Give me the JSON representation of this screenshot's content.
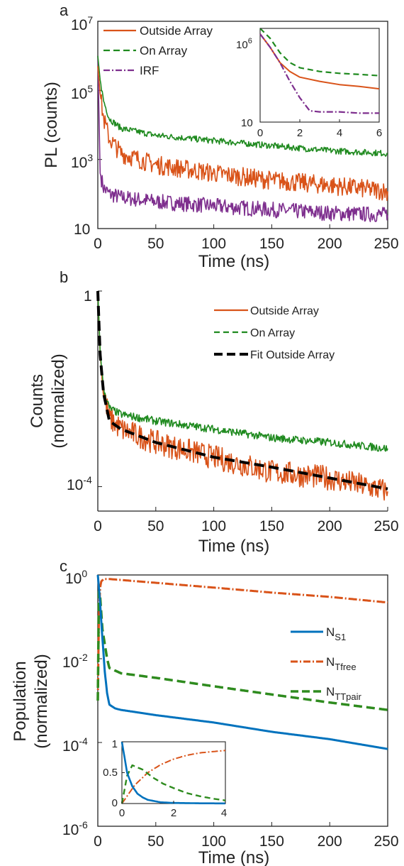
{
  "colors": {
    "outside": "#d95319",
    "on": "#1f8a1f",
    "irf": "#7e2f8e",
    "fit": "#000000",
    "s1": "#0072bd",
    "tfree": "#d95319",
    "ttpair": "#2e8b1e",
    "axis": "#222222"
  },
  "chart_data": [
    {
      "panel": "a",
      "type": "line",
      "title": "",
      "xlabel": "Time (ns)",
      "ylabel": "PL (counts)",
      "xlim": [
        0,
        250
      ],
      "ylim_log10": [
        1,
        7
      ],
      "log_y": true,
      "x_ticks": [
        "0",
        "50",
        "100",
        "150",
        "200",
        "250"
      ],
      "y_ticks": [
        {
          "mant": "10",
          "exp": "7"
        },
        {
          "mant": "10",
          "exp": "5"
        },
        {
          "mant": "10",
          "exp": "3"
        },
        {
          "mant": "10",
          "exp": ""
        }
      ],
      "legend_position": "top-left",
      "series": [
        {
          "name": "Outside Array",
          "style": "solid",
          "x": [
            0,
            2,
            5,
            10,
            20,
            50,
            100,
            150,
            200,
            250
          ],
          "y": [
            500000,
            80000,
            15000,
            4000,
            1500,
            700,
            400,
            250,
            180,
            120
          ]
        },
        {
          "name": "On Array",
          "style": "dashed",
          "x": [
            0,
            2,
            5,
            10,
            20,
            50,
            100,
            150,
            200,
            250
          ],
          "y": [
            1000000,
            200000,
            50000,
            15000,
            8000,
            5000,
            3500,
            2500,
            1800,
            1500
          ]
        },
        {
          "name": "IRF",
          "style": "dashdot",
          "x": [
            0,
            2,
            5,
            10,
            20,
            50,
            100,
            150,
            200,
            250
          ],
          "y": [
            1000000,
            400,
            150,
            100,
            80,
            60,
            45,
            35,
            28,
            25
          ]
        }
      ],
      "inset": {
        "xlim": [
          0,
          6
        ],
        "ylim_log10": [
          1,
          6
        ],
        "x_ticks": [
          "0",
          "2",
          "4",
          "6"
        ],
        "y_ticks": [
          {
            "mant": "10",
            "exp": "6"
          },
          {
            "mant": "10",
            "exp": ""
          }
        ],
        "series": [
          {
            "name": "Outside Array",
            "x": [
              0,
              0.5,
              1,
              1.5,
              2,
              3,
              4,
              5,
              6
            ],
            "y": [
              500000,
              100000,
              15000,
              5000,
              2500,
              1500,
              1000,
              800,
              600
            ]
          },
          {
            "name": "On Array",
            "x": [
              0,
              0.5,
              1,
              1.5,
              2,
              3,
              4,
              5,
              6
            ],
            "y": [
              1500000,
              300000,
              50000,
              15000,
              8000,
              5000,
              4000,
              3500,
              3000
            ]
          },
          {
            "name": "IRF",
            "x": [
              0,
              0.5,
              1,
              1.5,
              2,
              2.5,
              3,
              4,
              5,
              6
            ],
            "y": [
              500000,
              100000,
              15000,
              1500,
              200,
              40,
              35,
              35,
              30,
              30
            ]
          }
        ]
      }
    },
    {
      "panel": "b",
      "type": "line",
      "title": "",
      "xlabel": "Time (ns)",
      "ylabel": "Counts\n(normalized)",
      "ylabel_lines": [
        "Counts",
        "(normalized)"
      ],
      "xlim": [
        0,
        250
      ],
      "ylim_log10": [
        -4.5,
        0
      ],
      "log_y": true,
      "x_ticks": [
        "0",
        "50",
        "100",
        "150",
        "200",
        "250"
      ],
      "y_ticks": [
        {
          "mant": "1",
          "exp": ""
        },
        {
          "mant": "10",
          "exp": "-4"
        }
      ],
      "legend_position": "top-right",
      "series": [
        {
          "name": "Outside Array",
          "style": "solid",
          "x": [
            0,
            2,
            5,
            10,
            20,
            50,
            100,
            150,
            200,
            250
          ],
          "y": [
            1,
            0.05,
            0.008,
            0.0025,
            0.0015,
            0.0008,
            0.0004,
            0.0002,
            0.00015,
            8e-05
          ]
        },
        {
          "name": "On Array",
          "style": "dashed",
          "x": [
            0,
            2,
            5,
            10,
            20,
            50,
            100,
            150,
            200,
            250
          ],
          "y": [
            1,
            0.06,
            0.01,
            0.004,
            0.003,
            0.0022,
            0.0015,
            0.001,
            0.0008,
            0.0006
          ]
        },
        {
          "name": "Fit Outside Array",
          "style": "dashed-thick",
          "x": [
            0,
            2,
            5,
            10,
            20,
            50,
            100,
            150,
            200,
            250
          ],
          "y": [
            1,
            0.05,
            0.008,
            0.0022,
            0.0015,
            0.0008,
            0.0004,
            0.00025,
            0.00015,
            9e-05
          ]
        }
      ]
    },
    {
      "panel": "c",
      "type": "line",
      "title": "",
      "xlabel": "Time (ns)",
      "ylabel": "Population\n(normalized)",
      "ylabel_lines": [
        "Population",
        "(normalized)"
      ],
      "xlim": [
        0,
        250
      ],
      "ylim_log10": [
        -6,
        0
      ],
      "log_y": true,
      "x_ticks": [
        "0",
        "50",
        "100",
        "150",
        "200",
        "250"
      ],
      "y_ticks": [
        {
          "mant": "10",
          "exp": "0"
        },
        {
          "mant": "10",
          "exp": "-2"
        },
        {
          "mant": "10",
          "exp": "-4"
        },
        {
          "mant": "10",
          "exp": "-6"
        }
      ],
      "legend_position": "right",
      "series": [
        {
          "name": "N",
          "sub": "S1",
          "style": "solid",
          "x": [
            0,
            1,
            2,
            4,
            6,
            8,
            10,
            15,
            20,
            50,
            100,
            150,
            200,
            250
          ],
          "y": [
            1,
            0.5,
            0.2,
            0.03,
            0.005,
            0.0015,
            0.0008,
            0.00065,
            0.0006,
            0.00045,
            0.0003,
            0.00018,
            0.00012,
            7e-05
          ]
        },
        {
          "name": "N",
          "sub": "Tfree",
          "style": "dashdot",
          "x": [
            0,
            1,
            2,
            3,
            5,
            10,
            50,
            100,
            150,
            200,
            250
          ],
          "y": [
            0.001,
            0.1,
            0.5,
            0.7,
            0.8,
            0.8,
            0.65,
            0.5,
            0.38,
            0.3,
            0.22
          ]
        },
        {
          "name": "N",
          "sub": "TTpair",
          "style": "dashed",
          "x": [
            0,
            1,
            2,
            4,
            8,
            10,
            20,
            50,
            100,
            150,
            200,
            250
          ],
          "y": [
            0.001,
            0.4,
            0.3,
            0.05,
            0.01,
            0.006,
            0.0045,
            0.0035,
            0.0022,
            0.0014,
            0.0009,
            0.0006
          ]
        }
      ],
      "inset": {
        "xlim": [
          0,
          4
        ],
        "ylim": [
          0,
          1
        ],
        "x_ticks": [
          "0",
          "2",
          "4"
        ],
        "y_ticks": [
          "1",
          "0.5",
          "0"
        ],
        "series": [
          {
            "name": "N S1",
            "x": [
              0,
              0.1,
              0.2,
              0.4,
              0.6,
              0.8,
              1,
              1.5,
              2,
              3,
              4
            ],
            "y": [
              1,
              0.75,
              0.5,
              0.28,
              0.16,
              0.1,
              0.06,
              0.02,
              0.01,
              0.004,
              0.002
            ]
          },
          {
            "name": "N Tfree",
            "x": [
              0,
              0.5,
              1,
              1.5,
              2,
              2.5,
              3,
              3.5,
              4
            ],
            "y": [
              0,
              0.3,
              0.5,
              0.63,
              0.72,
              0.78,
              0.82,
              0.84,
              0.86
            ]
          },
          {
            "name": "N TTpair",
            "x": [
              0,
              0.2,
              0.4,
              0.8,
              1.2,
              1.6,
              2,
              2.5,
              3,
              3.5,
              4
            ],
            "y": [
              0,
              0.45,
              0.62,
              0.55,
              0.42,
              0.32,
              0.25,
              0.17,
              0.12,
              0.08,
              0.05
            ]
          }
        ]
      }
    }
  ]
}
